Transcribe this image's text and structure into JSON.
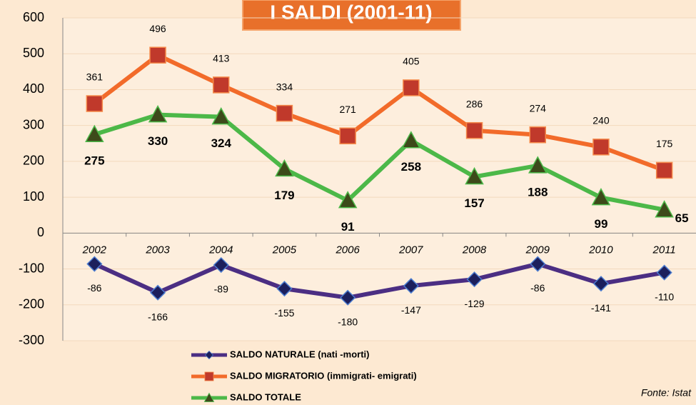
{
  "chart_data": {
    "type": "line",
    "title": "I SALDI (2001-11)",
    "source": "Fonte: Istat",
    "categories": [
      "2002",
      "2003",
      "2004",
      "2005",
      "2006",
      "2007",
      "2008",
      "2009",
      "2010",
      "2011"
    ],
    "series": [
      {
        "name": "SALDO NATURALE (nati -morti)",
        "color": "#4b2e83",
        "values": [
          -86,
          -166,
          -89,
          -155,
          -180,
          -147,
          -129,
          -86,
          -141,
          -110
        ]
      },
      {
        "name": "SALDO MIGRATORIO (immigrati- emigrati)",
        "color": "#f26b2a",
        "values": [
          361,
          496,
          413,
          334,
          271,
          405,
          286,
          274,
          240,
          175
        ]
      },
      {
        "name": "SALDO TOTALE",
        "color": "#4cb848",
        "values": [
          275,
          330,
          324,
          179,
          91,
          258,
          157,
          188,
          99,
          65
        ]
      }
    ],
    "ylim": [
      -300,
      600
    ],
    "yticks": [
      -300,
      -200,
      -100,
      0,
      100,
      200,
      300,
      400,
      500,
      600
    ],
    "grid": true
  }
}
